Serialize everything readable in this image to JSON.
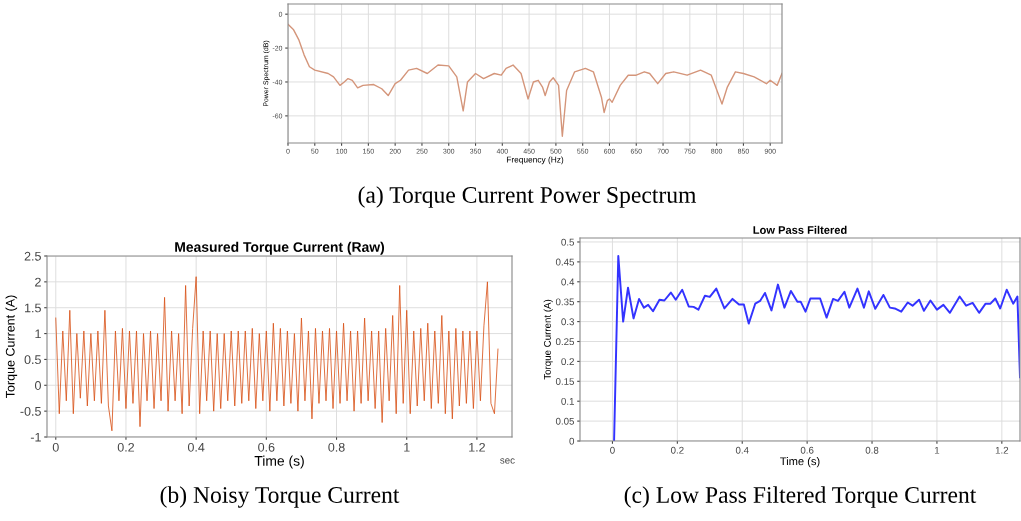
{
  "chart_data": [
    {
      "type": "line",
      "xlabel": "Frequency (Hz)",
      "ylabel": "Power Spectrum (dB)",
      "color": "#d4957a",
      "grid": true,
      "x": [
        0,
        10,
        20,
        30,
        40,
        50,
        75,
        85,
        97,
        105,
        112,
        120,
        130,
        140,
        160,
        175,
        187,
        200,
        210,
        225,
        240,
        260,
        280,
        300,
        315,
        327,
        335,
        350,
        365,
        385,
        398,
        407,
        420,
        435,
        448,
        458,
        467,
        475,
        480,
        488,
        495,
        505,
        512,
        520,
        535,
        555,
        570,
        585,
        590,
        596,
        600,
        605,
        620,
        635,
        650,
        665,
        675,
        690,
        705,
        720,
        745,
        770,
        790,
        810,
        820,
        835,
        850,
        870,
        893,
        900,
        913,
        922
      ],
      "values": [
        -6,
        -9,
        -15,
        -24,
        -31,
        -33,
        -35,
        -37,
        -42,
        -40,
        -38,
        -39,
        -43.5,
        -42,
        -41.5,
        -44,
        -48,
        -41,
        -39,
        -33,
        -32,
        -35,
        -30,
        -30.5,
        -37,
        -57,
        -40,
        -35,
        -38,
        -35,
        -36,
        -32,
        -30,
        -35,
        -50,
        -40,
        -39,
        -43,
        -48,
        -40,
        -37.5,
        -42,
        -72,
        -45,
        -34,
        -32,
        -34,
        -49,
        -58,
        -51,
        -50,
        -52,
        -42,
        -36,
        -36,
        -34,
        -35,
        -41,
        -35,
        -34,
        -36,
        -33,
        -36,
        -53,
        -43,
        -34,
        -35,
        -37,
        -41,
        -39,
        -42,
        -35
      ],
      "xlim": [
        0,
        922
      ],
      "ylim": [
        -76,
        6
      ],
      "xticks": [
        0,
        50,
        100,
        150,
        200,
        250,
        300,
        350,
        400,
        450,
        500,
        550,
        600,
        650,
        700,
        750,
        800,
        850,
        900
      ],
      "yticks": [
        0,
        -20,
        -40,
        -60
      ],
      "annotations": [
        "(a) Torque Current Power Spectrum"
      ]
    },
    {
      "type": "line",
      "title": "Measured Torque Current (Raw)",
      "xlabel": "Time (s)",
      "ylabel": "Torque Current (A)",
      "color": "#d95319",
      "grid": true,
      "x": [
        0,
        0.01,
        0.02,
        0.03,
        0.04,
        0.05,
        0.06,
        0.07,
        0.08,
        0.09,
        0.1,
        0.11,
        0.12,
        0.13,
        0.14,
        0.15,
        0.16,
        0.17,
        0.18,
        0.19,
        0.2,
        0.21,
        0.22,
        0.23,
        0.24,
        0.25,
        0.26,
        0.27,
        0.28,
        0.29,
        0.3,
        0.31,
        0.32,
        0.33,
        0.34,
        0.35,
        0.36,
        0.37,
        0.38,
        0.39,
        0.4,
        0.41,
        0.42,
        0.43,
        0.44,
        0.45,
        0.46,
        0.47,
        0.48,
        0.49,
        0.5,
        0.51,
        0.52,
        0.53,
        0.54,
        0.55,
        0.56,
        0.57,
        0.58,
        0.59,
        0.6,
        0.61,
        0.62,
        0.63,
        0.64,
        0.65,
        0.66,
        0.67,
        0.68,
        0.69,
        0.7,
        0.71,
        0.72,
        0.73,
        0.74,
        0.75,
        0.76,
        0.77,
        0.78,
        0.79,
        0.8,
        0.81,
        0.82,
        0.83,
        0.84,
        0.85,
        0.86,
        0.87,
        0.88,
        0.89,
        0.9,
        0.91,
        0.92,
        0.93,
        0.94,
        0.95,
        0.96,
        0.97,
        0.98,
        0.99,
        1,
        1.01,
        1.02,
        1.03,
        1.04,
        1.05,
        1.06,
        1.07,
        1.08,
        1.09,
        1.1,
        1.11,
        1.12,
        1.13,
        1.14,
        1.15,
        1.16,
        1.17,
        1.18,
        1.19,
        1.2,
        1.21,
        1.22,
        1.23,
        1.24,
        1.25,
        1.26
      ],
      "values": [
        1.3,
        -0.55,
        1.05,
        -0.3,
        1.45,
        -0.55,
        1.0,
        -0.25,
        1.05,
        -0.4,
        1.0,
        -0.3,
        1.05,
        -0.35,
        1.45,
        -0.4,
        -0.88,
        1.05,
        -0.3,
        1.1,
        -0.45,
        1.05,
        -0.35,
        1.05,
        -0.8,
        1.0,
        -0.3,
        1.05,
        -0.45,
        1.0,
        -0.3,
        1.7,
        -0.5,
        1.05,
        -0.3,
        1.0,
        -0.55,
        1.93,
        -0.4,
        1.1,
        2.1,
        -0.55,
        1.05,
        -0.3,
        1.05,
        -0.5,
        1.0,
        -0.45,
        1.0,
        -0.3,
        1.05,
        -0.4,
        1.05,
        -0.35,
        1.05,
        -0.3,
        1.1,
        -0.45,
        1.0,
        -0.3,
        1.05,
        -0.5,
        1.2,
        -0.3,
        1.1,
        -0.4,
        1.05,
        -0.35,
        1.0,
        -0.5,
        1.3,
        -0.3,
        1.05,
        -0.65,
        1.1,
        -0.35,
        1.05,
        -0.3,
        1.1,
        -0.45,
        1.05,
        -0.35,
        1.2,
        -0.3,
        1.05,
        -0.5,
        1.05,
        -0.35,
        1.3,
        -0.3,
        1.05,
        -0.45,
        1.05,
        -0.72,
        1.1,
        -0.3,
        1.35,
        -0.55,
        1.93,
        -0.35,
        1.45,
        -0.55,
        1.05,
        -0.4,
        1.1,
        -0.3,
        1.2,
        -0.45,
        1.05,
        -0.35,
        1.35,
        -0.55,
        1.05,
        -0.65,
        1.1,
        -0.4,
        1.05,
        -0.35,
        1.05,
        -0.45,
        1.05,
        -0.3,
        1.15,
        2.0,
        -0.35,
        -0.55,
        0.7
      ],
      "xlim": [
        -0.025,
        1.3
      ],
      "ylim": [
        -1,
        2.5
      ],
      "xticks": [
        0,
        0.2,
        0.4,
        0.6,
        0.8,
        1,
        1.2
      ],
      "yticks": [
        -1,
        -0.5,
        0,
        0.5,
        1,
        1.5,
        2,
        2.5
      ],
      "annotations": [
        "sec",
        "(b) Noisy Torque Current"
      ]
    },
    {
      "type": "line",
      "title": "Low Pass Filtered",
      "xlabel": "Time (s)",
      "ylabel": "Torque Current (A)",
      "color": "#3333ff",
      "grid": true,
      "x": [
        0.005,
        0.018,
        0.033,
        0.048,
        0.065,
        0.082,
        0.097,
        0.11,
        0.125,
        0.145,
        0.16,
        0.18,
        0.195,
        0.215,
        0.235,
        0.25,
        0.265,
        0.285,
        0.3,
        0.32,
        0.345,
        0.37,
        0.39,
        0.405,
        0.42,
        0.44,
        0.455,
        0.47,
        0.49,
        0.51,
        0.53,
        0.55,
        0.57,
        0.58,
        0.595,
        0.61,
        0.64,
        0.66,
        0.68,
        0.695,
        0.715,
        0.73,
        0.755,
        0.775,
        0.79,
        0.81,
        0.835,
        0.855,
        0.87,
        0.89,
        0.91,
        0.925,
        0.945,
        0.96,
        0.98,
        1.0,
        1.02,
        1.04,
        1.07,
        1.09,
        1.11,
        1.13,
        1.15,
        1.165,
        1.18,
        1.195,
        1.215,
        1.235,
        1.248,
        1.256
      ],
      "values": [
        0,
        0.465,
        0.3,
        0.385,
        0.308,
        0.357,
        0.335,
        0.342,
        0.326,
        0.355,
        0.353,
        0.373,
        0.355,
        0.38,
        0.338,
        0.337,
        0.33,
        0.365,
        0.362,
        0.383,
        0.333,
        0.357,
        0.343,
        0.343,
        0.295,
        0.345,
        0.352,
        0.372,
        0.328,
        0.393,
        0.335,
        0.377,
        0.35,
        0.35,
        0.325,
        0.358,
        0.358,
        0.31,
        0.357,
        0.352,
        0.375,
        0.335,
        0.383,
        0.335,
        0.376,
        0.332,
        0.367,
        0.335,
        0.333,
        0.325,
        0.348,
        0.34,
        0.355,
        0.327,
        0.353,
        0.33,
        0.342,
        0.322,
        0.363,
        0.34,
        0.347,
        0.322,
        0.345,
        0.345,
        0.358,
        0.333,
        0.38,
        0.345,
        0.363,
        0.16
      ],
      "xlim": [
        -0.1,
        1.256
      ],
      "ylim": [
        0,
        0.51
      ],
      "xticks": [
        0,
        0.2,
        0.4,
        0.6,
        0.8,
        1,
        1.2
      ],
      "yticks": [
        0,
        0.05,
        0.1,
        0.15,
        0.2,
        0.25,
        0.3,
        0.35,
        0.4,
        0.45,
        0.5
      ],
      "annotations": [
        "(c) Low Pass Filtered Torque Current"
      ]
    }
  ]
}
